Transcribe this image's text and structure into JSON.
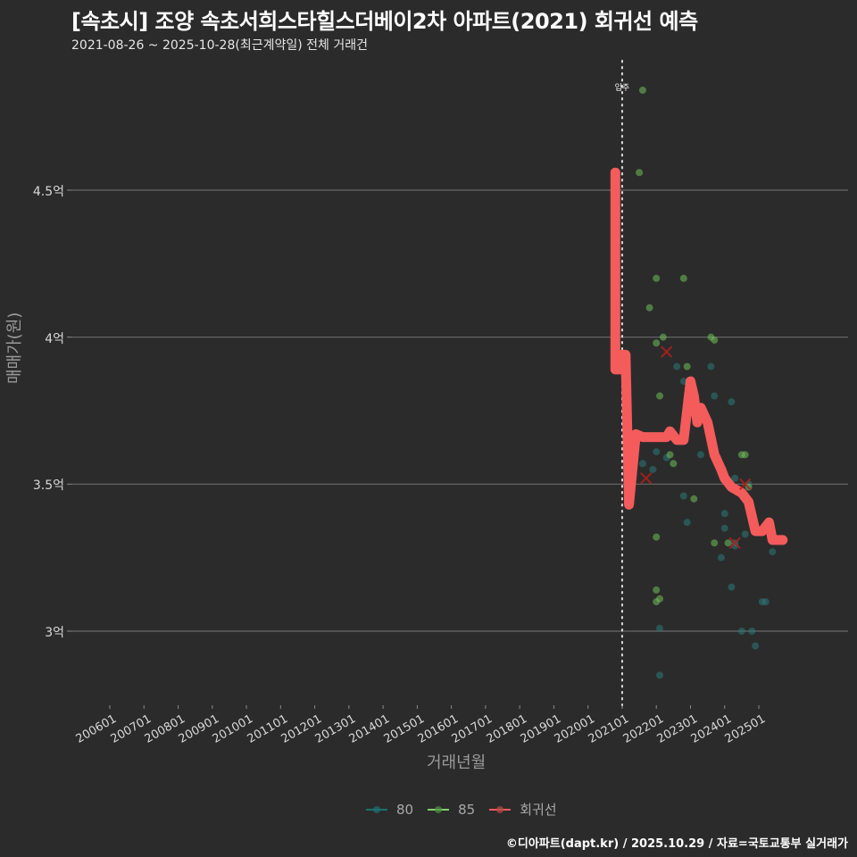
{
  "header": {
    "title": "[속초시] 조양 속초서희스타힐스더베이2차 아파트(2021) 회귀선 예측",
    "subtitle": "2021-08-26 ~ 2025-10-28(최근계약일) 전체 거래건"
  },
  "footer": {
    "credit": "©디아파트(dapt.kr) / 2025.10.29 / 자료=국토교통부 실거래가"
  },
  "chart_data": {
    "type": "scatter",
    "title": "[속초시] 조양 속초서희스타힐스더베이2차 아파트(2021) 회귀선 예측",
    "subtitle": "2021-08-26 ~ 2025-10-28(최근계약일) 전체 거래건",
    "xlabel": "거래년월",
    "ylabel": "매매가(원)",
    "x_ticks": [
      "200601",
      "200701",
      "200801",
      "200901",
      "201001",
      "201101",
      "201201",
      "201301",
      "201401",
      "201501",
      "201601",
      "201701",
      "201801",
      "201901",
      "202001",
      "202101",
      "202201",
      "202301",
      "202401",
      "202501"
    ],
    "y_ticks": [
      {
        "value": 3.0,
        "label": "3억"
      },
      {
        "value": 3.5,
        "label": "3.5억"
      },
      {
        "value": 4.0,
        "label": "4억"
      },
      {
        "value": 4.5,
        "label": "4.5억"
      }
    ],
    "ylim": [
      2.75,
      4.93
    ],
    "xlim_years": [
      2005.0,
      2026.7
    ],
    "grid": {
      "horizontal": true,
      "vertical": false
    },
    "annotation": {
      "label": "입주",
      "x_year": 2021.0,
      "style": "dotted vertical line"
    },
    "legend": [
      {
        "name": "80",
        "color": "#1f6f6f"
      },
      {
        "name": "85",
        "color": "#7fcf6a"
      },
      {
        "name": "회귀선",
        "color": "#f05a5a"
      }
    ],
    "series": [
      {
        "name": "80",
        "color": "#2a7a78",
        "points": [
          [
            2021.6,
            3.57
          ],
          [
            2021.9,
            3.55
          ],
          [
            2022.0,
            3.61
          ],
          [
            2022.1,
            3.01
          ],
          [
            2022.1,
            2.85
          ],
          [
            2022.3,
            3.59
          ],
          [
            2022.6,
            3.9
          ],
          [
            2022.8,
            3.85
          ],
          [
            2022.8,
            3.46
          ],
          [
            2022.9,
            3.37
          ],
          [
            2023.3,
            3.6
          ],
          [
            2023.6,
            3.9
          ],
          [
            2023.7,
            3.8
          ],
          [
            2023.8,
            3.59
          ],
          [
            2023.9,
            3.25
          ],
          [
            2024.0,
            3.4
          ],
          [
            2024.0,
            3.35
          ],
          [
            2024.2,
            3.78
          ],
          [
            2024.2,
            3.15
          ],
          [
            2024.3,
            3.52
          ],
          [
            2024.3,
            3.29
          ],
          [
            2024.5,
            3.0
          ],
          [
            2024.7,
            3.5
          ],
          [
            2024.8,
            3.0
          ],
          [
            2024.9,
            2.95
          ],
          [
            2025.1,
            3.1
          ],
          [
            2025.2,
            3.1
          ],
          [
            2025.4,
            3.27
          ],
          [
            2024.6,
            3.33
          ],
          [
            2024.3,
            3.3
          ]
        ]
      },
      {
        "name": "85",
        "color": "#6fbf5a",
        "points": [
          [
            2021.5,
            4.56
          ],
          [
            2021.6,
            4.84
          ],
          [
            2021.8,
            4.1
          ],
          [
            2022.0,
            4.2
          ],
          [
            2022.0,
            3.98
          ],
          [
            2022.1,
            3.8
          ],
          [
            2022.2,
            4.0
          ],
          [
            2022.0,
            3.32
          ],
          [
            2022.0,
            3.14
          ],
          [
            2022.0,
            3.1
          ],
          [
            2022.1,
            3.11
          ],
          [
            2022.4,
            3.6
          ],
          [
            2022.5,
            3.57
          ],
          [
            2022.8,
            4.2
          ],
          [
            2022.9,
            3.9
          ],
          [
            2023.1,
            3.45
          ],
          [
            2023.6,
            4.0
          ],
          [
            2023.7,
            3.99
          ],
          [
            2023.7,
            3.3
          ],
          [
            2024.1,
            3.3
          ],
          [
            2024.5,
            3.6
          ],
          [
            2024.6,
            3.6
          ],
          [
            2024.6,
            3.45
          ],
          [
            2024.7,
            3.49
          ]
        ]
      },
      {
        "name": "회귀선",
        "color": "#f45b5b",
        "points": [
          [
            2020.8,
            4.56
          ],
          [
            2020.8,
            3.89
          ],
          [
            2021.0,
            3.89
          ],
          [
            2021.0,
            3.94
          ],
          [
            2021.1,
            3.94
          ],
          [
            2021.2,
            3.43
          ],
          [
            2021.4,
            3.67
          ],
          [
            2021.6,
            3.66
          ],
          [
            2022.0,
            3.66
          ],
          [
            2022.3,
            3.66
          ],
          [
            2022.4,
            3.68
          ],
          [
            2022.6,
            3.65
          ],
          [
            2022.8,
            3.65
          ],
          [
            2023.0,
            3.85
          ],
          [
            2023.1,
            3.8
          ],
          [
            2023.2,
            3.71
          ],
          [
            2023.3,
            3.76
          ],
          [
            2023.5,
            3.71
          ],
          [
            2023.7,
            3.6
          ],
          [
            2023.9,
            3.55
          ],
          [
            2024.0,
            3.52
          ],
          [
            2024.2,
            3.49
          ],
          [
            2024.5,
            3.47
          ],
          [
            2024.7,
            3.44
          ],
          [
            2024.9,
            3.34
          ],
          [
            2025.1,
            3.34
          ],
          [
            2025.3,
            3.37
          ],
          [
            2025.4,
            3.31
          ],
          [
            2025.7,
            3.31
          ]
        ]
      }
    ],
    "cross_markers": [
      [
        2022.3,
        3.95
      ],
      [
        2021.7,
        3.52
      ],
      [
        2024.3,
        3.3
      ],
      [
        2024.6,
        3.5
      ]
    ]
  }
}
